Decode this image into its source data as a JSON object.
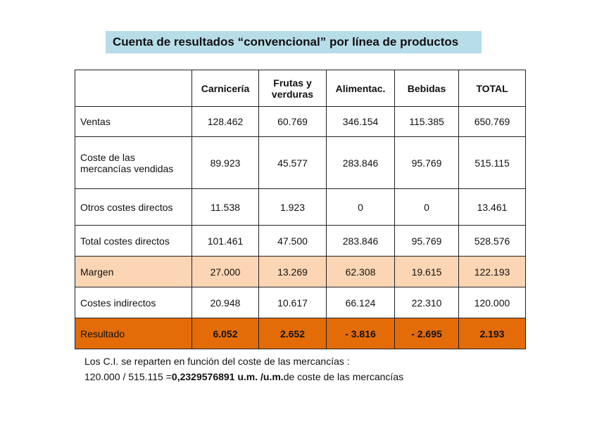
{
  "title": "Cuenta de resultados “convencional” por línea de productos",
  "table": {
    "header": [
      "Carnicería",
      "Frutas y verduras",
      "Alimentac.",
      "Bebidas",
      "TOTAL"
    ],
    "rows": [
      {
        "label": "Ventas",
        "values": [
          "128.462",
          "60.769",
          "346.154",
          "115.385",
          "650.769"
        ]
      },
      {
        "label": "Coste de las mercancías vendidas",
        "values": [
          "89.923",
          "45.577",
          "283.846",
          "95.769",
          "515.115"
        ]
      },
      {
        "label": "Otros costes directos",
        "values": [
          "11.538",
          "1.923",
          "0",
          "0",
          "13.461"
        ]
      },
      {
        "label": "Total costes directos",
        "values": [
          "101.461",
          "47.500",
          "283.846",
          "95.769",
          "528.576"
        ]
      },
      {
        "label": "Margen",
        "values": [
          "27.000",
          "13.269",
          "62.308",
          "19.615",
          "122.193"
        ]
      },
      {
        "label": "Costes indirectos",
        "values": [
          "20.948",
          "10.617",
          "66.124",
          "22.310",
          "120.000"
        ]
      },
      {
        "label": "Resultado",
        "values": [
          "6.052",
          "2.652",
          "- 3.816",
          "- 2.695",
          "2.193"
        ]
      }
    ]
  },
  "notes": {
    "line1": "Los C.I. se reparten en función del coste de las mercancías :",
    "line2": [
      "120.000 / 515.115 =",
      "0,2329576891 u.m. /u.m.",
      "de coste de las mercancías"
    ]
  }
}
